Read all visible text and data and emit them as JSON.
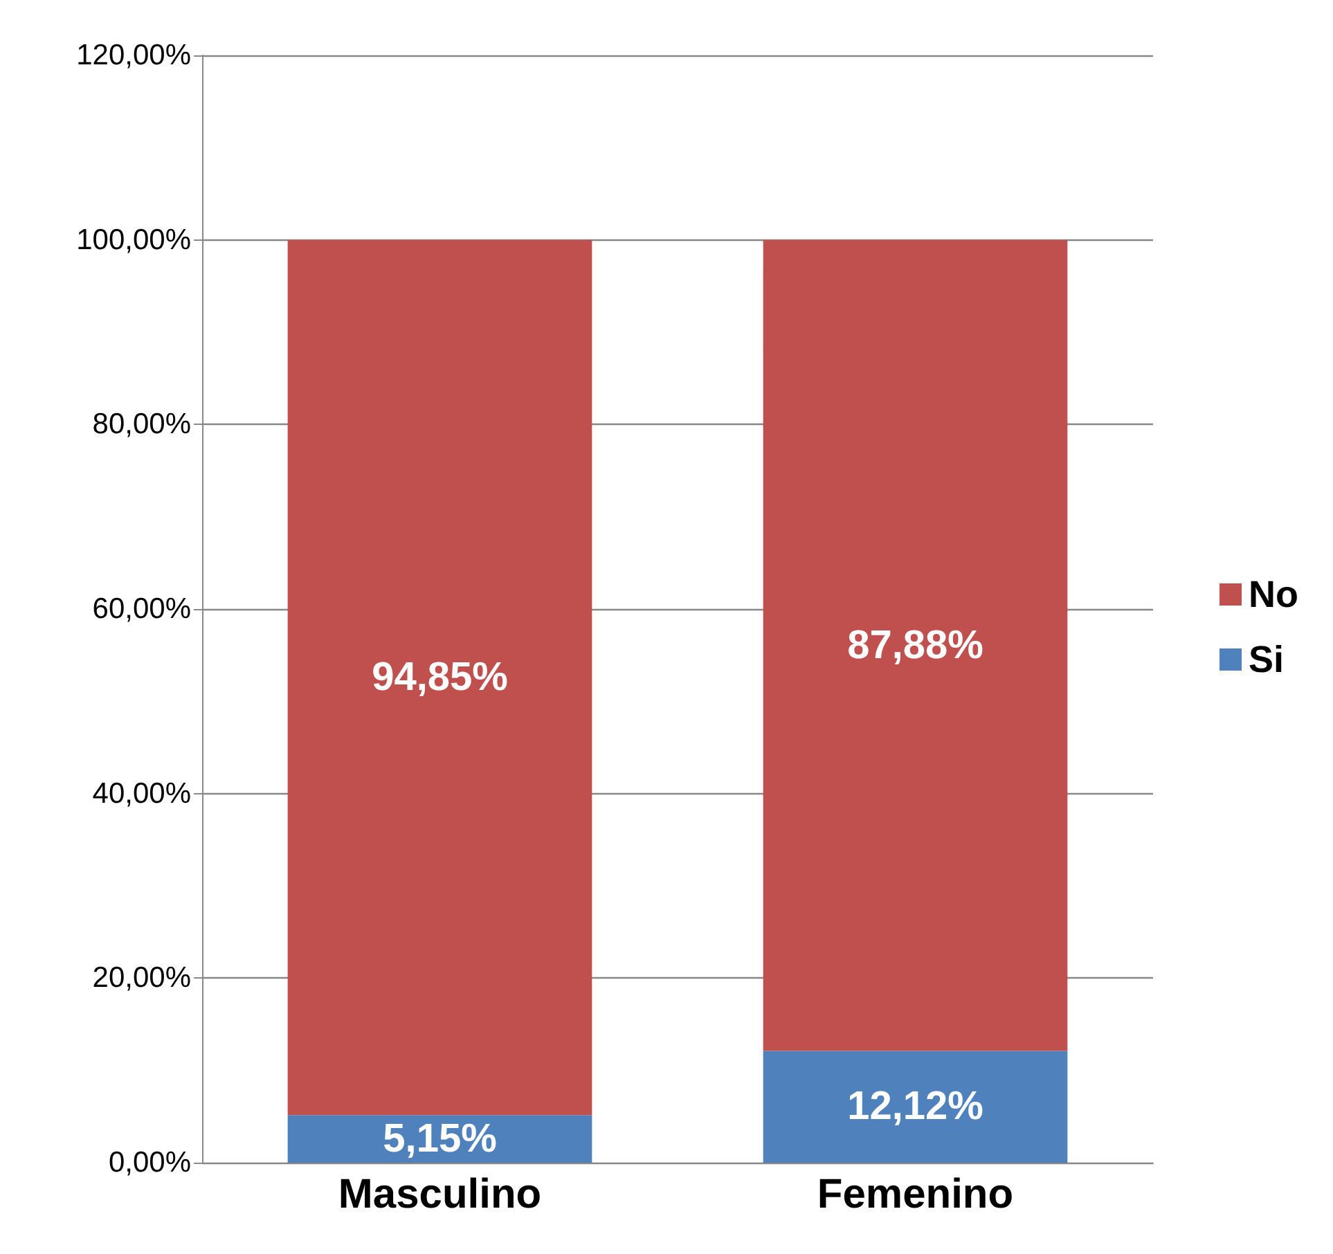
{
  "chart_data": {
    "type": "bar",
    "stacked": true,
    "categories": [
      "Masculino",
      "Femenino"
    ],
    "series": [
      {
        "name": "Si",
        "color": "#4f81bd",
        "values": [
          5.15,
          12.12
        ],
        "value_labels": [
          "5,15%",
          "12,12%"
        ]
      },
      {
        "name": "No",
        "color": "#c0504d",
        "values": [
          94.85,
          87.88
        ],
        "value_labels": [
          "94,85%",
          "87,88%"
        ]
      }
    ],
    "ylim": [
      0,
      120
    ],
    "yticks": [
      {
        "value": 0,
        "label": "0,00%"
      },
      {
        "value": 20,
        "label": "20,00%"
      },
      {
        "value": 40,
        "label": "40,00%"
      },
      {
        "value": 60,
        "label": "60,00%"
      },
      {
        "value": 80,
        "label": "80,00%"
      },
      {
        "value": 100,
        "label": "100,00%"
      },
      {
        "value": 120,
        "label": "120,00%"
      }
    ],
    "grid": "y",
    "legend": "right"
  }
}
